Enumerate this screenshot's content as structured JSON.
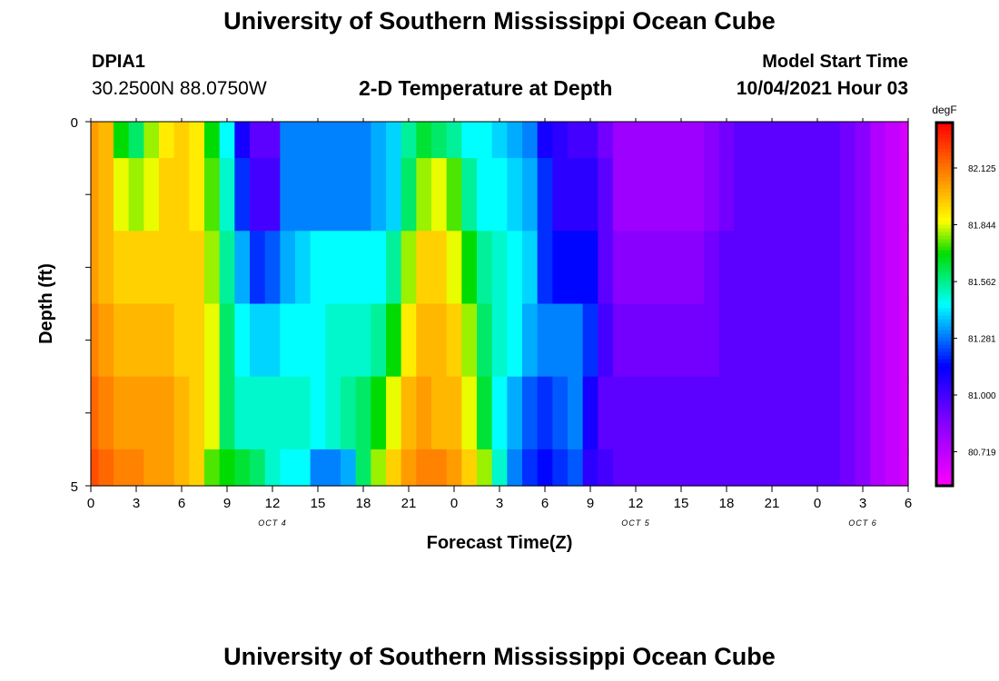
{
  "page": {
    "title": "University of Southern Mississippi Ocean Cube",
    "footer_title": "University of Southern Mississippi Ocean Cube",
    "station": "DPIA1",
    "coordinates": "30.2500N  88.0750W",
    "subtitle": "2-D Temperature at Depth",
    "model_start_label": "Model Start Time",
    "model_start_value": "10/04/2021 Hour 03"
  },
  "chart_data": {
    "type": "heatmap",
    "title": "2-D Temperature at Depth",
    "xlabel": "Forecast Time(Z)",
    "ylabel": "Depth (ft)",
    "x_tick_labels": [
      "0",
      "3",
      "6",
      "9",
      "12",
      "15",
      "18",
      "21",
      "0",
      "3",
      "6",
      "9",
      "12",
      "15",
      "18",
      "21",
      "0",
      "3",
      "6"
    ],
    "date_labels": [
      {
        "text": "OCT 4",
        "at_hour": 12
      },
      {
        "text": "OCT 5",
        "at_hour": 36
      },
      {
        "text": "OCT 6",
        "at_hour": 51
      }
    ],
    "x_range_hours": [
      0,
      54
    ],
    "y_tick_labels": [
      "0",
      "5"
    ],
    "y_range": [
      0,
      5
    ],
    "colorbar": {
      "unit": "degF",
      "tick_labels": [
        "82.125",
        "81.844",
        "81.562",
        "81.281",
        "81.000",
        "80.719"
      ],
      "tick_values": [
        82.125,
        81.844,
        81.562,
        81.281,
        81.0,
        80.719
      ],
      "vmin": 80.55,
      "vmax": 82.35
    },
    "depth_layers": [
      {
        "depth_range": [
          0,
          0.5
        ],
        "x_hours": [
          0,
          1,
          2,
          3,
          4,
          5,
          6,
          7,
          8,
          9,
          10,
          11,
          12,
          13,
          14,
          15,
          16,
          17,
          18,
          19,
          20,
          21,
          22,
          23,
          24,
          25,
          26,
          27,
          28,
          29,
          30,
          31,
          32,
          33,
          34,
          35,
          36,
          37,
          38,
          39,
          40,
          41,
          42,
          43,
          44,
          45,
          46,
          47,
          48,
          49,
          50,
          51,
          52,
          53,
          54
        ],
        "values": [
          82.05,
          82.0,
          81.7,
          81.6,
          81.8,
          81.9,
          81.95,
          81.9,
          81.7,
          81.45,
          81.1,
          80.95,
          80.95,
          81.3,
          81.3,
          81.3,
          81.3,
          81.3,
          81.3,
          81.35,
          81.4,
          81.55,
          81.65,
          81.6,
          81.55,
          81.45,
          81.45,
          81.4,
          81.35,
          81.3,
          81.1,
          81.05,
          81.0,
          81.0,
          80.9,
          80.8,
          80.8,
          80.8,
          80.8,
          80.8,
          80.8,
          80.85,
          80.9,
          80.95,
          80.95,
          80.95,
          80.95,
          80.95,
          80.95,
          80.95,
          80.9,
          80.85,
          80.75,
          80.7,
          80.65
        ]
      },
      {
        "depth_range": [
          0.5,
          1.5
        ],
        "x_hours": [
          0,
          1,
          2,
          3,
          4,
          5,
          6,
          7,
          8,
          9,
          10,
          11,
          12,
          13,
          14,
          15,
          16,
          17,
          18,
          19,
          20,
          21,
          22,
          23,
          24,
          25,
          26,
          27,
          28,
          29,
          30,
          31,
          32,
          33,
          34,
          35,
          36,
          37,
          38,
          39,
          40,
          41,
          42,
          43,
          44,
          45,
          46,
          47,
          48,
          49,
          50,
          51,
          52,
          53,
          54
        ],
        "values": [
          82.05,
          82.0,
          81.85,
          81.8,
          81.85,
          81.95,
          81.95,
          81.9,
          81.75,
          81.5,
          81.2,
          81.0,
          81.0,
          81.3,
          81.3,
          81.3,
          81.3,
          81.3,
          81.3,
          81.35,
          81.4,
          81.6,
          81.8,
          81.85,
          81.75,
          81.55,
          81.45,
          81.45,
          81.4,
          81.35,
          81.2,
          81.05,
          81.05,
          81.05,
          80.95,
          80.8,
          80.8,
          80.8,
          80.8,
          80.8,
          80.8,
          80.85,
          80.9,
          80.95,
          80.95,
          80.95,
          80.95,
          80.95,
          80.95,
          80.95,
          80.9,
          80.85,
          80.75,
          80.7,
          80.65
        ]
      },
      {
        "depth_range": [
          1.5,
          2.5
        ],
        "x_hours": [
          0,
          1,
          2,
          3,
          4,
          5,
          6,
          7,
          8,
          9,
          10,
          11,
          12,
          13,
          14,
          15,
          16,
          17,
          18,
          19,
          20,
          21,
          22,
          23,
          24,
          25,
          26,
          27,
          28,
          29,
          30,
          31,
          32,
          33,
          34,
          35,
          36,
          37,
          38,
          39,
          40,
          41,
          42,
          43,
          44,
          45,
          46,
          47,
          48,
          49,
          50,
          51,
          52,
          53,
          54
        ],
        "values": [
          82.05,
          82.0,
          81.95,
          81.95,
          81.95,
          81.95,
          81.95,
          81.95,
          81.8,
          81.55,
          81.35,
          81.2,
          81.25,
          81.35,
          81.4,
          81.45,
          81.45,
          81.45,
          81.45,
          81.45,
          81.55,
          81.8,
          81.95,
          81.95,
          81.85,
          81.7,
          81.55,
          81.5,
          81.45,
          81.4,
          81.2,
          81.15,
          81.15,
          81.15,
          80.95,
          80.85,
          80.85,
          80.85,
          80.85,
          80.85,
          80.85,
          80.9,
          80.95,
          80.95,
          80.95,
          80.95,
          80.95,
          80.95,
          80.95,
          80.95,
          80.9,
          80.85,
          80.75,
          80.7,
          80.65
        ]
      },
      {
        "depth_range": [
          2.5,
          3.5
        ],
        "x_hours": [
          0,
          1,
          2,
          3,
          4,
          5,
          6,
          7,
          8,
          9,
          10,
          11,
          12,
          13,
          14,
          15,
          16,
          17,
          18,
          19,
          20,
          21,
          22,
          23,
          24,
          25,
          26,
          27,
          28,
          29,
          30,
          31,
          32,
          33,
          34,
          35,
          36,
          37,
          38,
          39,
          40,
          41,
          42,
          43,
          44,
          45,
          46,
          47,
          48,
          49,
          50,
          51,
          52,
          53,
          54
        ],
        "values": [
          82.1,
          82.05,
          82.0,
          82.0,
          82.0,
          82.0,
          81.95,
          81.95,
          81.85,
          81.6,
          81.45,
          81.4,
          81.4,
          81.45,
          81.45,
          81.45,
          81.5,
          81.5,
          81.5,
          81.55,
          81.7,
          81.9,
          82.0,
          82.0,
          81.95,
          81.8,
          81.6,
          81.5,
          81.45,
          81.35,
          81.3,
          81.3,
          81.3,
          81.2,
          81.0,
          80.9,
          80.9,
          80.9,
          80.9,
          80.9,
          80.9,
          80.9,
          80.95,
          80.95,
          80.95,
          80.95,
          80.95,
          80.95,
          80.95,
          80.95,
          80.9,
          80.85,
          80.75,
          80.7,
          80.65
        ]
      },
      {
        "depth_range": [
          3.5,
          4.5
        ],
        "x_hours": [
          0,
          1,
          2,
          3,
          4,
          5,
          6,
          7,
          8,
          9,
          10,
          11,
          12,
          13,
          14,
          15,
          16,
          17,
          18,
          19,
          20,
          21,
          22,
          23,
          24,
          25,
          26,
          27,
          28,
          29,
          30,
          31,
          32,
          33,
          34,
          35,
          36,
          37,
          38,
          39,
          40,
          41,
          42,
          43,
          44,
          45,
          46,
          47,
          48,
          49,
          50,
          51,
          52,
          53,
          54
        ],
        "values": [
          82.15,
          82.1,
          82.05,
          82.05,
          82.05,
          82.05,
          82.0,
          81.95,
          81.85,
          81.6,
          81.5,
          81.5,
          81.5,
          81.5,
          81.5,
          81.45,
          81.5,
          81.55,
          81.6,
          81.7,
          81.85,
          82.0,
          82.05,
          82.0,
          82.0,
          81.85,
          81.65,
          81.45,
          81.35,
          81.25,
          81.2,
          81.25,
          81.3,
          81.1,
          80.95,
          80.95,
          80.95,
          80.95,
          80.95,
          80.95,
          80.95,
          80.95,
          80.95,
          80.95,
          80.95,
          80.95,
          80.95,
          80.95,
          80.95,
          80.95,
          80.9,
          80.85,
          80.75,
          80.7,
          80.65
        ]
      },
      {
        "depth_range": [
          4.5,
          5
        ],
        "x_hours": [
          0,
          1,
          2,
          3,
          4,
          5,
          6,
          7,
          8,
          9,
          10,
          11,
          12,
          13,
          14,
          15,
          16,
          17,
          18,
          19,
          20,
          21,
          22,
          23,
          24,
          25,
          26,
          27,
          28,
          29,
          30,
          31,
          32,
          33,
          34,
          35,
          36,
          37,
          38,
          39,
          40,
          41,
          42,
          43,
          44,
          45,
          46,
          47,
          48,
          49,
          50,
          51,
          52,
          53,
          54
        ],
        "values": [
          82.2,
          82.15,
          82.1,
          82.1,
          82.05,
          82.05,
          82.0,
          81.95,
          81.75,
          81.7,
          81.65,
          81.6,
          81.5,
          81.45,
          81.45,
          81.3,
          81.3,
          81.35,
          81.6,
          81.8,
          81.95,
          82.05,
          82.1,
          82.1,
          82.05,
          81.95,
          81.8,
          81.5,
          81.3,
          81.2,
          81.15,
          81.2,
          81.25,
          81.05,
          81.0,
          80.95,
          80.95,
          80.95,
          80.95,
          80.95,
          80.95,
          80.95,
          80.95,
          80.95,
          80.95,
          80.95,
          80.95,
          80.95,
          80.95,
          80.95,
          80.9,
          80.85,
          80.75,
          80.7,
          80.65
        ]
      }
    ],
    "grid": false,
    "legend": "colorbar-right"
  }
}
